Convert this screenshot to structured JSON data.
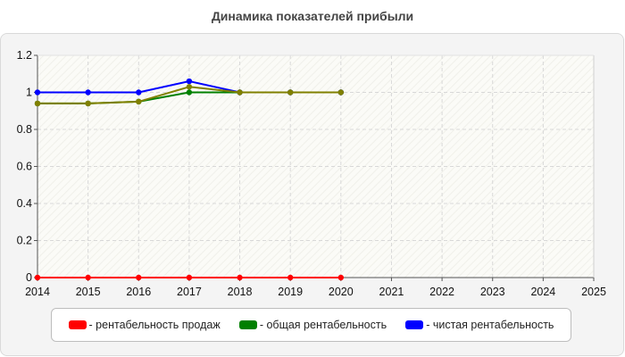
{
  "chart_data": {
    "type": "line",
    "title": "Динамика показателей прибыли",
    "xlabel": "",
    "ylabel": "",
    "x": [
      2014,
      2015,
      2016,
      2017,
      2018,
      2019,
      2020
    ],
    "x_ticks": [
      "2014",
      "2015",
      "2016",
      "2017",
      "2018",
      "2019",
      "2020",
      "2021",
      "2022",
      "2023",
      "2024",
      "2025"
    ],
    "xlim": [
      2014,
      2025
    ],
    "ylim": [
      0,
      1.2
    ],
    "y_ticks": [
      "0",
      "0.2",
      "0.4",
      "0.6",
      "0.8",
      "1",
      "1.2"
    ],
    "grid": true,
    "legend_position": "bottom",
    "series": [
      {
        "name": "- рентабельность продаж",
        "color": "#ff0000",
        "values": [
          0,
          0,
          0,
          0,
          0,
          0,
          0
        ]
      },
      {
        "name": "- общая рентабельность",
        "color": "#008000",
        "values": [
          0.94,
          0.94,
          0.95,
          1.0,
          1.0,
          1.0,
          1.0
        ]
      },
      {
        "name": "- чистая рентабельность",
        "color": "#0000ff",
        "values": [
          1.0,
          1.0,
          1.0,
          1.06,
          1.0,
          1.0,
          1.0
        ]
      },
      {
        "name": "",
        "color": "#808000",
        "values": [
          0.94,
          0.94,
          0.95,
          1.03,
          1.0,
          1.0,
          1.0
        ]
      }
    ]
  }
}
